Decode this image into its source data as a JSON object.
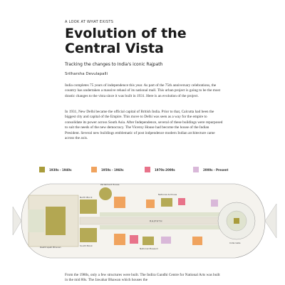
{
  "header": {
    "kicker": "A LOOK AT WHAT EXISTS",
    "title_line1": "Evolution of the",
    "title_line2": "Central Vista",
    "subtitle": "Tracking the changes to India's iconic Rajpath",
    "author": "Srilharsha Devulapalli"
  },
  "body": {
    "p1": "India completes 75 years of independence this year. As part of the 75th anniversary celebrations, the country has undertaken a massive rehaul of its national mall. This urban project is going to be the most drastic changes to the vista since it was built in 1931. Here is an evolution of the project.",
    "p2": "In 1931, New Delhi became the official capital of British India. Prior to that, Calcutta had been the biggest city and capital of the Empire. This move to Delhi was seen as a way for the empire to consolidate its power across South Asia. After Independence, several of these buildings were repurposed to suit the needs of the new democracy. The Viceroy House had become the house of the Indian President. Several new buildings emblematic of post indpendence modern Indian architecture came across the axis.",
    "p3": "From the 1980s, only a few structures were built. The Indira Gandhi Centre for National Arts was built in the mid 80s. The Jawahar Bhawan which houses the"
  },
  "legend": [
    {
      "label": "1930s - 1940s",
      "color": "#a99c3b"
    },
    {
      "label": "1950s - 1960s",
      "color": "#f0a35e"
    },
    {
      "label": "1970s-2000s",
      "color": "#e8738a"
    },
    {
      "label": "2000s - Present",
      "color": "#d9b8d9"
    }
  ],
  "map": {
    "labels": {
      "rashtrapati": "Rashtrapati Bhavan",
      "parliament": "Parliament House",
      "national_archives": "National Archives",
      "rajpath": "RAJPATH",
      "india_gate": "India Gate",
      "north_block": "North Block",
      "south_block": "South Block",
      "nmm": "National Museum"
    }
  }
}
